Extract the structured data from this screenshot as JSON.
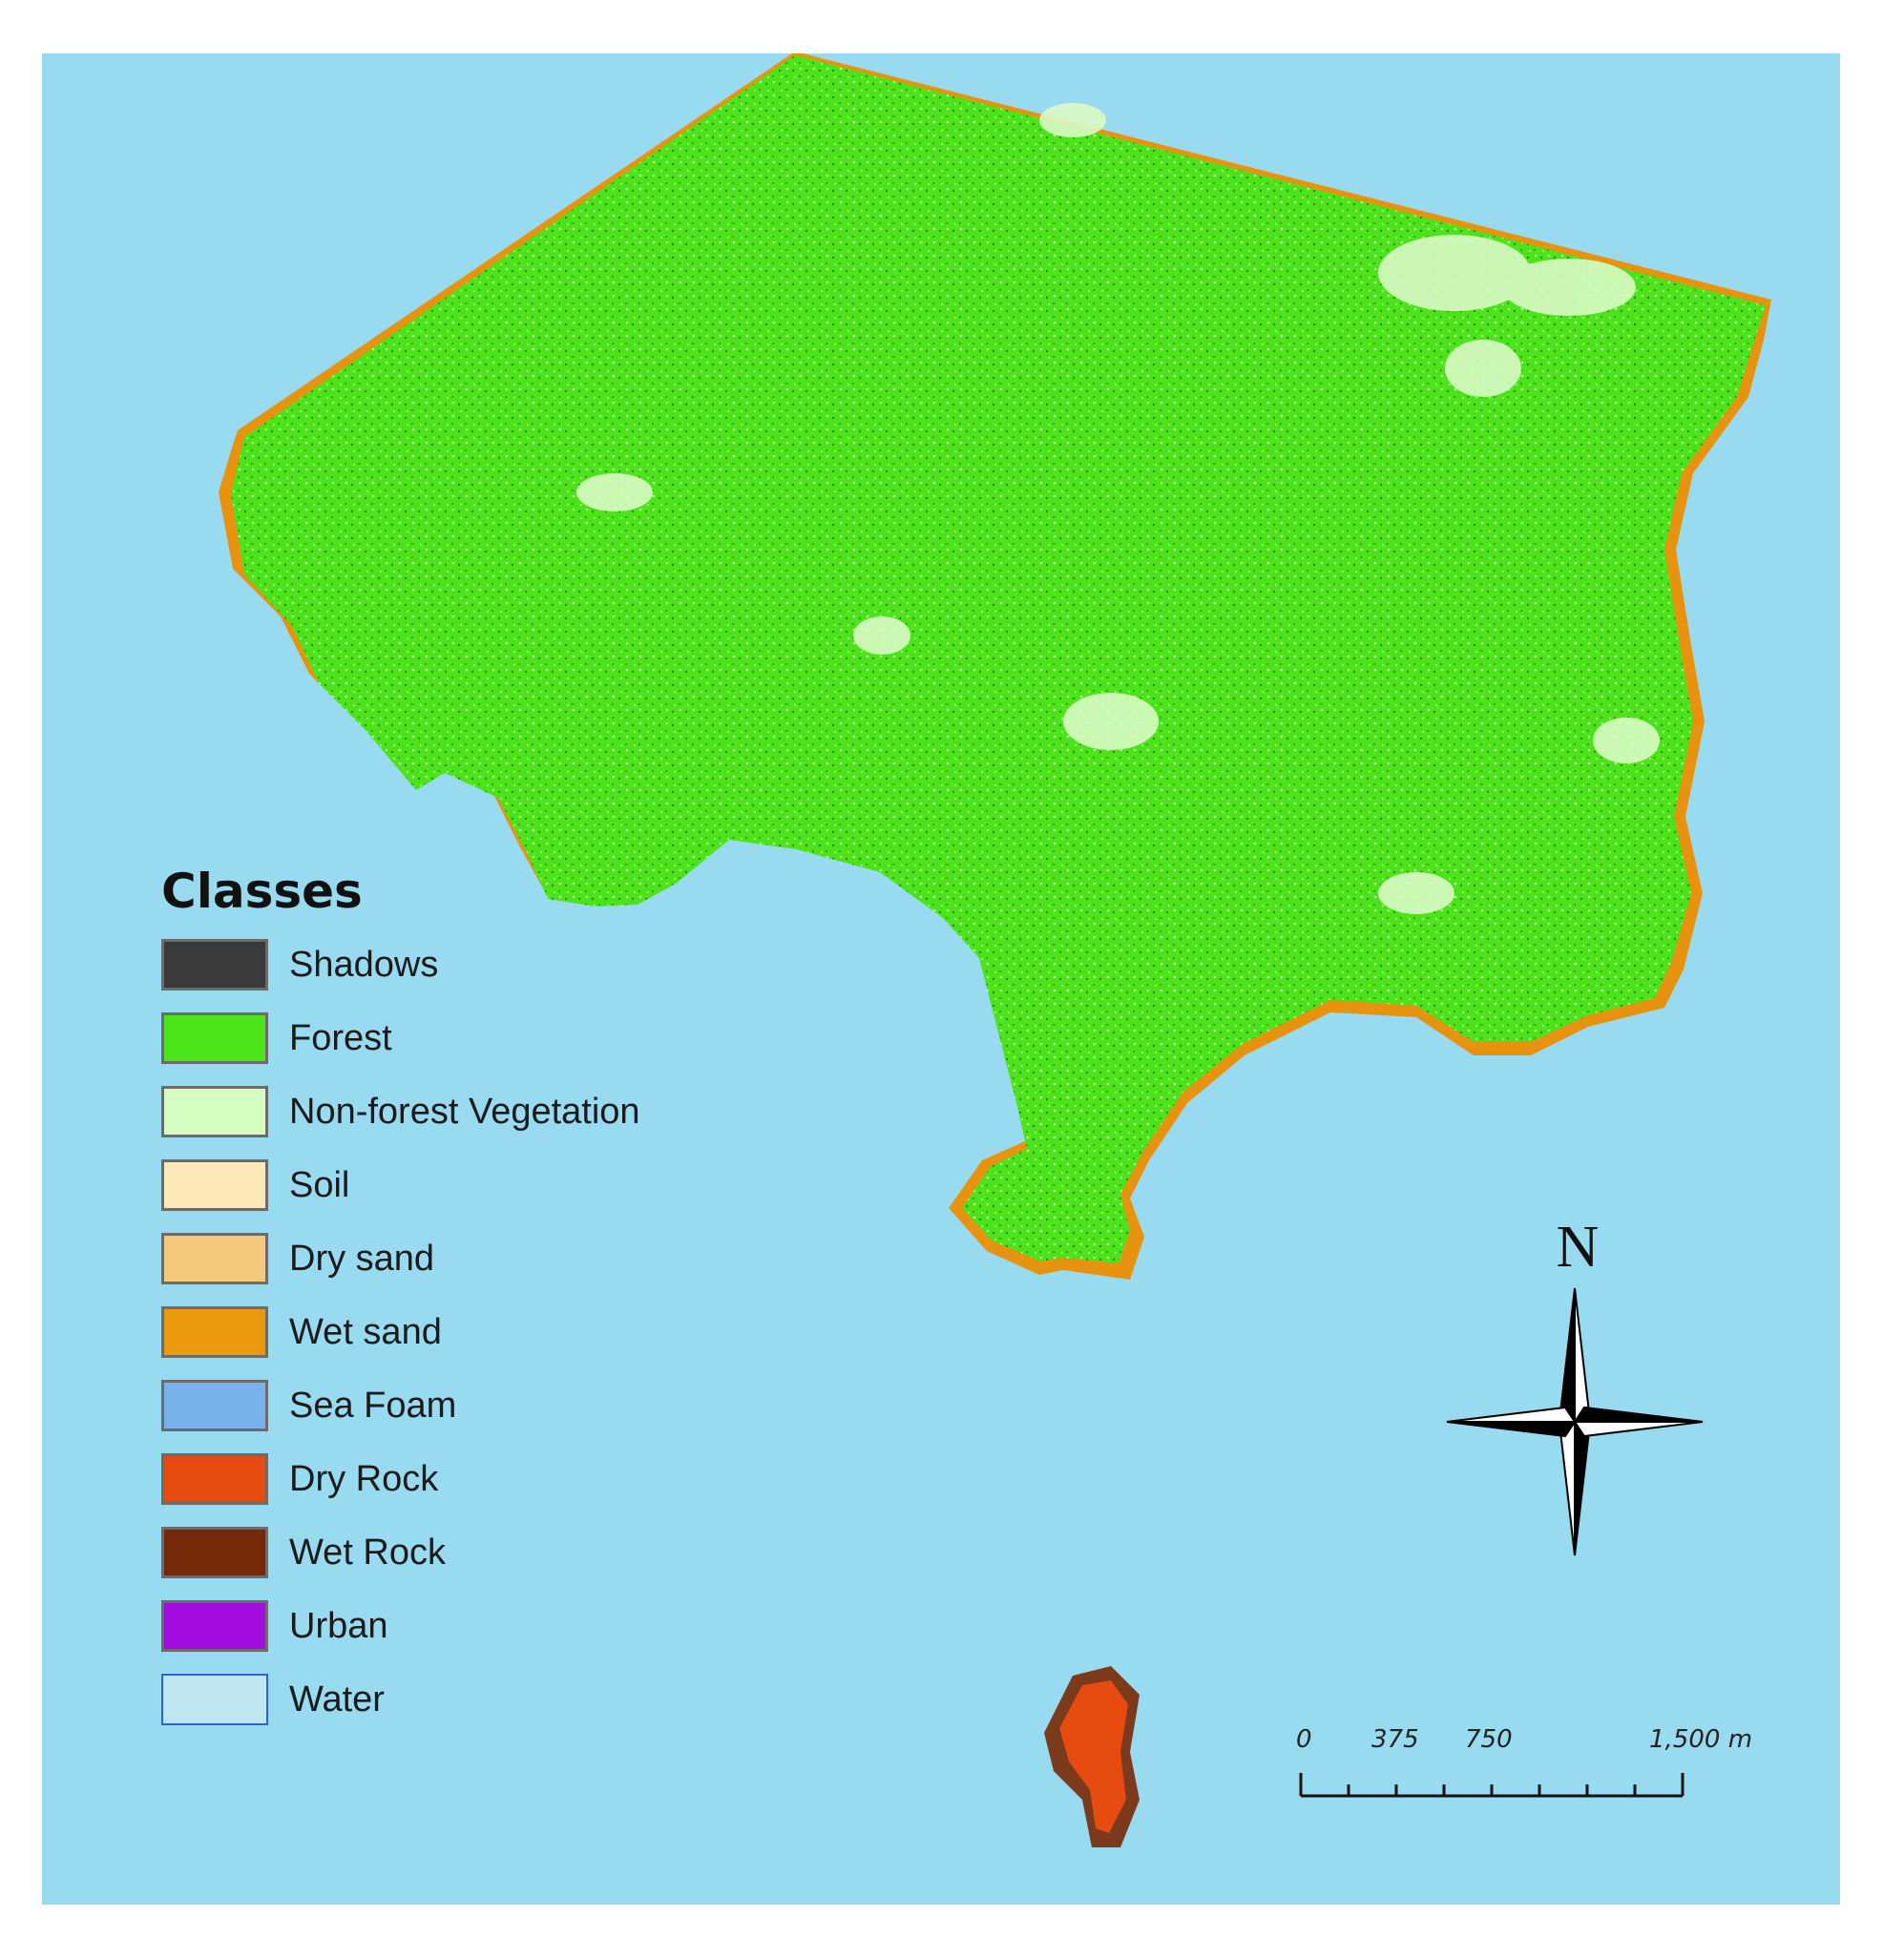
{
  "colors": {
    "background_sea": "#98daf0",
    "forest": "#4de31b",
    "nonforest_patch": "#d9f9c4",
    "wet_sand_coast": "#e8930f",
    "dry_sand_coast": "#f2c47a",
    "dry_rock_island": "#e64b0f"
  },
  "legend": {
    "title": "Classes",
    "items": [
      {
        "label": "Shadows",
        "color": "#3a3a3a"
      },
      {
        "label": "Forest",
        "color": "#4de31b"
      },
      {
        "label": "Non-forest Vegetation",
        "color": "#d5fdc2"
      },
      {
        "label": "Soil",
        "color": "#fde9b8"
      },
      {
        "label": "Dry sand",
        "color": "#f3c97c"
      },
      {
        "label": "Wet sand",
        "color": "#e89a0c"
      },
      {
        "label": "Sea Foam",
        "color": "#7ab3ec"
      },
      {
        "label": "Dry Rock",
        "color": "#e64b0f"
      },
      {
        "label": "Wet Rock",
        "color": "#742908"
      },
      {
        "label": "Urban",
        "color": "#a30de0"
      },
      {
        "label": "Water",
        "color": "#c0e6f2"
      }
    ]
  },
  "north_arrow": {
    "label": "N",
    "icon": "north-arrow-compass-icon"
  },
  "scale": {
    "ticks": [
      "0",
      "375",
      "750",
      "1,500 m"
    ]
  }
}
